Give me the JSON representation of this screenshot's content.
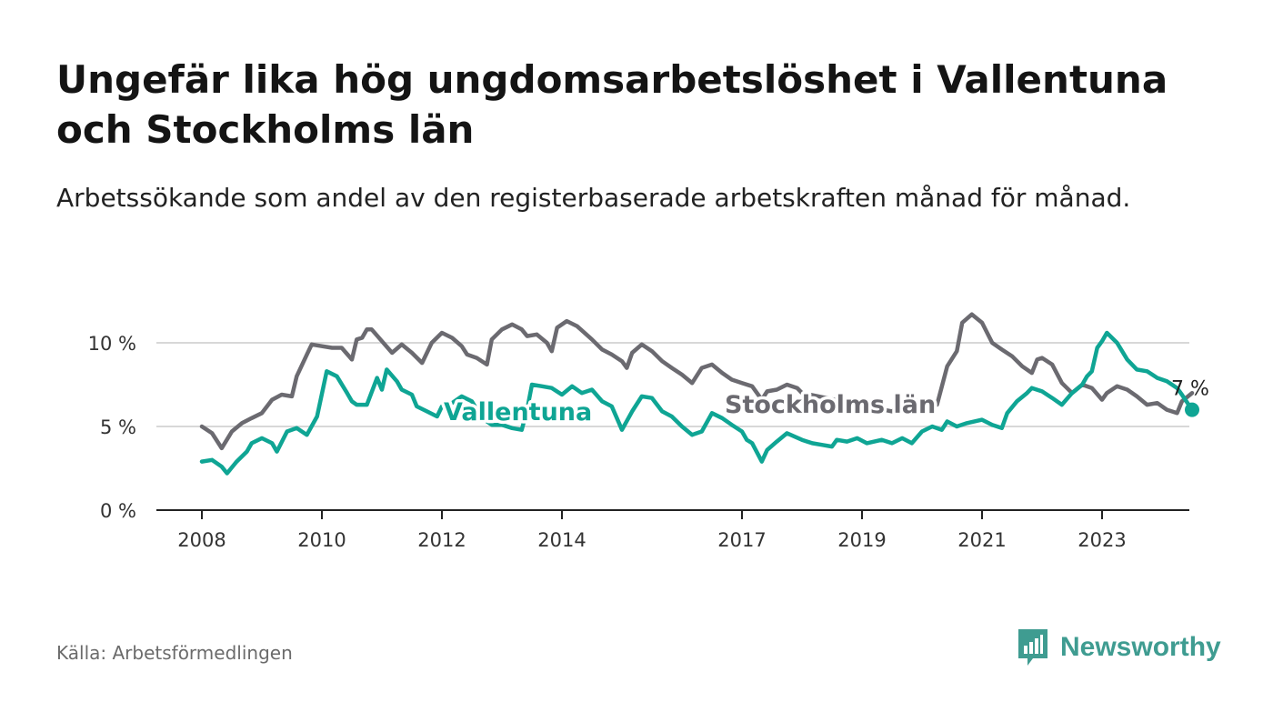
{
  "title": "Ungefär lika hög ungdomsarbetslöshet i Vallentuna och Stockholms län",
  "subtitle": "Arbetssökande som andel av den registerbaserade arbetskraften månad för månad.",
  "source": "Källa: Arbetsförmedlingen",
  "brand": {
    "name": "Newsworthy",
    "icon": "bar-chart-speech-bubble-icon",
    "color": "#3f9c91"
  },
  "chart_data": {
    "type": "line",
    "title": "",
    "xlabel": "",
    "ylabel": "",
    "ylim": [
      0,
      12
    ],
    "xlim": [
      2007.75,
      2024.5
    ],
    "yticks": [
      0,
      5,
      10
    ],
    "ytick_labels": [
      "0 %",
      "5 %",
      "10 %"
    ],
    "xticks": [
      2008,
      2010,
      2012,
      2014,
      2017,
      2019,
      2021,
      2023
    ],
    "xtick_labels": [
      "2008",
      "2010",
      "2012",
      "2014",
      "2017",
      "2019",
      "2021",
      "2023"
    ],
    "grid": true,
    "end_label": "7 %",
    "series": [
      {
        "name": "Stockholms län",
        "color": "#6b6a70",
        "points": [
          [
            2008.0,
            5.0
          ],
          [
            2008.17,
            4.6
          ],
          [
            2008.33,
            3.7
          ],
          [
            2008.5,
            4.7
          ],
          [
            2008.67,
            5.2
          ],
          [
            2008.83,
            5.5
          ],
          [
            2009.0,
            5.8
          ],
          [
            2009.17,
            6.6
          ],
          [
            2009.33,
            6.9
          ],
          [
            2009.5,
            6.8
          ],
          [
            2009.58,
            8.0
          ],
          [
            2009.75,
            9.3
          ],
          [
            2009.83,
            9.9
          ],
          [
            2010.0,
            9.8
          ],
          [
            2010.17,
            9.7
          ],
          [
            2010.33,
            9.7
          ],
          [
            2010.5,
            9.0
          ],
          [
            2010.58,
            10.2
          ],
          [
            2010.67,
            10.3
          ],
          [
            2010.75,
            10.8
          ],
          [
            2010.83,
            10.8
          ],
          [
            2011.0,
            10.1
          ],
          [
            2011.17,
            9.4
          ],
          [
            2011.33,
            9.9
          ],
          [
            2011.5,
            9.4
          ],
          [
            2011.67,
            8.8
          ],
          [
            2011.83,
            10.0
          ],
          [
            2012.0,
            10.6
          ],
          [
            2012.17,
            10.3
          ],
          [
            2012.33,
            9.8
          ],
          [
            2012.42,
            9.3
          ],
          [
            2012.58,
            9.1
          ],
          [
            2012.75,
            8.7
          ],
          [
            2012.83,
            10.2
          ],
          [
            2013.0,
            10.8
          ],
          [
            2013.17,
            11.1
          ],
          [
            2013.33,
            10.8
          ],
          [
            2013.42,
            10.4
          ],
          [
            2013.58,
            10.5
          ],
          [
            2013.75,
            10.0
          ],
          [
            2013.83,
            9.5
          ],
          [
            2013.92,
            10.9
          ],
          [
            2014.08,
            11.3
          ],
          [
            2014.25,
            11.0
          ],
          [
            2014.5,
            10.2
          ],
          [
            2014.67,
            9.6
          ],
          [
            2014.83,
            9.3
          ],
          [
            2015.0,
            8.9
          ],
          [
            2015.08,
            8.5
          ],
          [
            2015.17,
            9.4
          ],
          [
            2015.33,
            9.9
          ],
          [
            2015.5,
            9.5
          ],
          [
            2015.67,
            8.9
          ],
          [
            2015.83,
            8.5
          ],
          [
            2016.0,
            8.1
          ],
          [
            2016.17,
            7.6
          ],
          [
            2016.33,
            8.5
          ],
          [
            2016.5,
            8.7
          ],
          [
            2016.67,
            8.2
          ],
          [
            2016.83,
            7.8
          ],
          [
            2017.0,
            7.6
          ],
          [
            2017.17,
            7.4
          ],
          [
            2017.33,
            6.6
          ],
          [
            2017.42,
            7.1
          ],
          [
            2017.58,
            7.2
          ],
          [
            2017.75,
            7.5
          ],
          [
            2017.92,
            7.3
          ],
          [
            2018.0,
            7.0
          ],
          [
            2019.5,
            5.9
          ],
          [
            2019.67,
            6.3
          ],
          [
            2020.0,
            6.6
          ],
          [
            2020.25,
            6.3
          ],
          [
            2020.42,
            8.6
          ],
          [
            2020.58,
            9.5
          ],
          [
            2020.67,
            11.2
          ],
          [
            2020.83,
            11.7
          ],
          [
            2021.0,
            11.2
          ],
          [
            2021.17,
            10.0
          ],
          [
            2021.33,
            9.6
          ],
          [
            2021.5,
            9.2
          ],
          [
            2021.67,
            8.6
          ],
          [
            2021.83,
            8.2
          ],
          [
            2021.92,
            9.0
          ],
          [
            2022.0,
            9.1
          ],
          [
            2022.17,
            8.7
          ],
          [
            2022.33,
            7.6
          ],
          [
            2022.5,
            7.0
          ],
          [
            2022.67,
            7.5
          ],
          [
            2022.83,
            7.3
          ],
          [
            2023.0,
            6.6
          ],
          [
            2023.08,
            7.0
          ],
          [
            2023.25,
            7.4
          ],
          [
            2023.42,
            7.2
          ],
          [
            2023.58,
            6.8
          ],
          [
            2023.75,
            6.3
          ],
          [
            2023.92,
            6.4
          ],
          [
            2024.08,
            6.0
          ],
          [
            2024.25,
            5.8
          ],
          [
            2024.33,
            6.5
          ],
          [
            2024.5,
            7.0
          ]
        ]
      },
      {
        "name": "Vallentuna",
        "color": "#0fa594",
        "points": [
          [
            2008.0,
            2.9
          ],
          [
            2008.17,
            3.0
          ],
          [
            2008.33,
            2.6
          ],
          [
            2008.42,
            2.2
          ],
          [
            2008.58,
            2.9
          ],
          [
            2008.75,
            3.5
          ],
          [
            2008.83,
            4.0
          ],
          [
            2009.0,
            4.3
          ],
          [
            2009.17,
            4.0
          ],
          [
            2009.25,
            3.5
          ],
          [
            2009.42,
            4.7
          ],
          [
            2009.58,
            4.9
          ],
          [
            2009.75,
            4.5
          ],
          [
            2009.92,
            5.6
          ],
          [
            2010.08,
            8.3
          ],
          [
            2010.25,
            8.0
          ],
          [
            2010.42,
            7.0
          ],
          [
            2010.5,
            6.5
          ],
          [
            2010.58,
            6.3
          ],
          [
            2010.75,
            6.3
          ],
          [
            2010.92,
            7.9
          ],
          [
            2011.0,
            7.2
          ],
          [
            2011.08,
            8.4
          ],
          [
            2011.25,
            7.7
          ],
          [
            2011.33,
            7.2
          ],
          [
            2011.5,
            6.9
          ],
          [
            2011.58,
            6.2
          ],
          [
            2011.75,
            5.9
          ],
          [
            2011.92,
            5.6
          ],
          [
            2012.0,
            6.2
          ],
          [
            2012.17,
            6.4
          ],
          [
            2012.33,
            6.8
          ],
          [
            2012.5,
            6.5
          ],
          [
            2012.67,
            5.5
          ],
          [
            2012.83,
            5.1
          ],
          [
            2013.0,
            5.1
          ],
          [
            2013.17,
            4.9
          ],
          [
            2013.33,
            4.8
          ],
          [
            2013.42,
            6.0
          ],
          [
            2013.5,
            7.5
          ],
          [
            2013.67,
            7.4
          ],
          [
            2013.83,
            7.3
          ],
          [
            2014.0,
            6.9
          ],
          [
            2014.17,
            7.4
          ],
          [
            2014.33,
            7.0
          ],
          [
            2014.5,
            7.2
          ],
          [
            2014.67,
            6.5
          ],
          [
            2014.83,
            6.2
          ],
          [
            2015.0,
            4.8
          ],
          [
            2015.17,
            5.9
          ],
          [
            2015.33,
            6.8
          ],
          [
            2015.5,
            6.7
          ],
          [
            2015.67,
            5.9
          ],
          [
            2015.83,
            5.6
          ],
          [
            2016.0,
            5.0
          ],
          [
            2016.17,
            4.5
          ],
          [
            2016.33,
            4.7
          ],
          [
            2016.5,
            5.8
          ],
          [
            2016.67,
            5.5
          ],
          [
            2016.83,
            5.1
          ],
          [
            2017.0,
            4.7
          ],
          [
            2017.08,
            4.2
          ],
          [
            2017.17,
            4.0
          ],
          [
            2017.33,
            2.9
          ],
          [
            2017.42,
            3.6
          ],
          [
            2017.58,
            4.1
          ],
          [
            2017.75,
            4.6
          ],
          [
            2018.0,
            4.2
          ],
          [
            2018.17,
            4.0
          ],
          [
            2018.33,
            3.9
          ],
          [
            2018.5,
            3.8
          ],
          [
            2018.58,
            4.2
          ],
          [
            2018.75,
            4.1
          ],
          [
            2018.92,
            4.3
          ],
          [
            2019.08,
            4.0
          ],
          [
            2019.33,
            4.2
          ],
          [
            2019.5,
            4.0
          ],
          [
            2019.67,
            4.3
          ],
          [
            2019.83,
            4.0
          ],
          [
            2020.0,
            4.7
          ],
          [
            2020.17,
            5.0
          ],
          [
            2020.33,
            4.8
          ],
          [
            2020.42,
            5.3
          ],
          [
            2020.58,
            5.0
          ],
          [
            2020.75,
            5.2
          ],
          [
            2021.0,
            5.4
          ],
          [
            2021.17,
            5.1
          ],
          [
            2021.33,
            4.9
          ],
          [
            2021.42,
            5.8
          ],
          [
            2021.58,
            6.5
          ],
          [
            2021.75,
            7.0
          ],
          [
            2021.83,
            7.3
          ],
          [
            2022.0,
            7.1
          ],
          [
            2022.17,
            6.7
          ],
          [
            2022.33,
            6.3
          ],
          [
            2022.5,
            7.0
          ],
          [
            2022.67,
            7.5
          ],
          [
            2022.75,
            8.0
          ],
          [
            2022.83,
            8.3
          ],
          [
            2022.92,
            9.7
          ],
          [
            2023.0,
            10.1
          ],
          [
            2023.08,
            10.6
          ],
          [
            2023.25,
            10.0
          ],
          [
            2023.42,
            9.0
          ],
          [
            2023.58,
            8.4
          ],
          [
            2023.75,
            8.3
          ],
          [
            2023.92,
            7.9
          ],
          [
            2024.08,
            7.7
          ],
          [
            2024.25,
            7.3
          ],
          [
            2024.33,
            6.9
          ],
          [
            2024.5,
            6.0
          ]
        ]
      }
    ]
  }
}
